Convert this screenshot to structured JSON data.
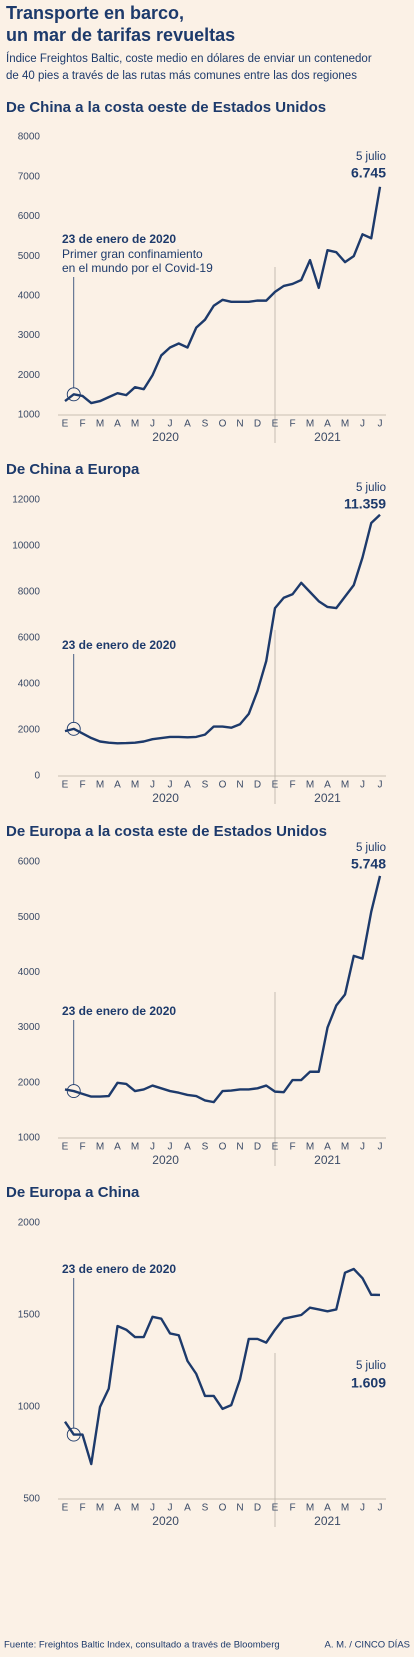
{
  "header": {
    "title": [
      "Transporte en barco,",
      "un mar de tarifas revueltas"
    ],
    "subtitle": [
      "Índice Freightos Baltic, coste medio en dólares de enviar un contenedor",
      "de 40 pies a través de las rutas más comunes entre las dos regiones"
    ]
  },
  "chart_data": [
    {
      "type": "line",
      "title": "De China a la costa oeste de Estados Unidos",
      "categories": [
        "E",
        null,
        "F",
        null,
        "M",
        null,
        "A",
        null,
        "M",
        null,
        "J",
        null,
        "J",
        null,
        "A",
        null,
        "S",
        null,
        "O",
        null,
        "N",
        null,
        "D",
        null,
        "E",
        null,
        "F",
        null,
        "M",
        null,
        "A",
        null,
        "M",
        null,
        "J",
        null,
        "J"
      ],
      "x_group_labels": [
        "2020",
        "2021"
      ],
      "values": [
        1350,
        1520,
        1480,
        1300,
        1350,
        1450,
        1550,
        1500,
        1700,
        1650,
        2000,
        2500,
        2700,
        2800,
        2700,
        3200,
        3400,
        3750,
        3900,
        3850,
        3850,
        3850,
        3880,
        3880,
        4100,
        4250,
        4300,
        4400,
        4900,
        4200,
        5150,
        5100,
        4850,
        5000,
        5550,
        5450,
        6745
      ],
      "value_labels": [
        null,
        null,
        null,
        null,
        null,
        null,
        null,
        null,
        null,
        null,
        null,
        null,
        null,
        null,
        null,
        null,
        null,
        null,
        null,
        null,
        null,
        null,
        null,
        null,
        null,
        null,
        null,
        null,
        null,
        null,
        null,
        null,
        null,
        null,
        null,
        null,
        "6.745"
      ],
      "end_annotation": "5 julio",
      "annotation": {
        "title": "23 de enero de 2020",
        "lines": [
          "Primer gran confinamiento",
          "en el mundo por el Covid-19"
        ]
      },
      "color": "#1d3a6b",
      "ylim": [
        1000,
        8000
      ],
      "yticks": [
        1000,
        2000,
        3000,
        4000,
        5000,
        6000,
        7000,
        8000
      ]
    },
    {
      "type": "line",
      "title": "De China a Europa",
      "categories": [
        "E",
        null,
        "F",
        null,
        "M",
        null,
        "A",
        null,
        "M",
        null,
        "J",
        null,
        "J",
        null,
        "A",
        null,
        "S",
        null,
        "O",
        null,
        "N",
        null,
        "D",
        null,
        "E",
        null,
        "F",
        null,
        "M",
        null,
        "A",
        null,
        "M",
        null,
        "J",
        null,
        "J"
      ],
      "x_group_labels": [
        "2020",
        "2021"
      ],
      "values": [
        1950,
        2050,
        1850,
        1650,
        1500,
        1450,
        1420,
        1430,
        1450,
        1500,
        1600,
        1650,
        1700,
        1700,
        1680,
        1700,
        1800,
        2150,
        2150,
        2100,
        2250,
        2700,
        3700,
        5000,
        7300,
        7750,
        7900,
        8400,
        8000,
        7600,
        7350,
        7300,
        7800,
        8300,
        9500,
        11000,
        11359
      ],
      "value_labels": [
        null,
        null,
        null,
        null,
        null,
        null,
        null,
        null,
        null,
        null,
        null,
        null,
        null,
        null,
        null,
        null,
        null,
        null,
        null,
        null,
        null,
        null,
        null,
        null,
        null,
        null,
        null,
        null,
        null,
        null,
        null,
        null,
        null,
        null,
        null,
        null,
        "11.359"
      ],
      "end_annotation": "5 julio",
      "annotation": {
        "title": "23 de enero de 2020"
      },
      "color": "#1d3a6b",
      "ylim": [
        0,
        12000
      ],
      "yticks": [
        0,
        2000,
        4000,
        6000,
        8000,
        10000,
        12000
      ]
    },
    {
      "type": "line",
      "title": "De Europa a la costa este de Estados Unidos",
      "categories": [
        "E",
        null,
        "F",
        null,
        "M",
        null,
        "A",
        null,
        "M",
        null,
        "J",
        null,
        "J",
        null,
        "A",
        null,
        "S",
        null,
        "O",
        null,
        "N",
        null,
        "D",
        null,
        "E",
        null,
        "F",
        null,
        "M",
        null,
        "A",
        null,
        "M",
        null,
        "J",
        null,
        "J"
      ],
      "x_group_labels": [
        "2020",
        "2021"
      ],
      "values": [
        1880,
        1850,
        1800,
        1750,
        1750,
        1760,
        2000,
        1980,
        1850,
        1880,
        1950,
        1900,
        1850,
        1820,
        1780,
        1760,
        1680,
        1650,
        1850,
        1860,
        1880,
        1880,
        1900,
        1950,
        1840,
        1830,
        2050,
        2050,
        2200,
        2200,
        3000,
        3400,
        3600,
        4300,
        4250,
        5100,
        5748
      ],
      "value_labels": [
        null,
        null,
        null,
        null,
        null,
        null,
        null,
        null,
        null,
        null,
        null,
        null,
        null,
        null,
        null,
        null,
        null,
        null,
        null,
        null,
        null,
        null,
        null,
        null,
        null,
        null,
        null,
        null,
        null,
        null,
        null,
        null,
        null,
        null,
        null,
        null,
        "5.748"
      ],
      "end_annotation": "5 julio",
      "annotation": {
        "title": "23 de enero de 2020"
      },
      "color": "#1d3a6b",
      "ylim": [
        1000,
        6000
      ],
      "yticks": [
        1000,
        2000,
        3000,
        4000,
        5000,
        6000
      ]
    },
    {
      "type": "line",
      "title": "De Europa a China",
      "categories": [
        "E",
        null,
        "F",
        null,
        "M",
        null,
        "A",
        null,
        "M",
        null,
        "J",
        null,
        "J",
        null,
        "A",
        null,
        "S",
        null,
        "O",
        null,
        "N",
        null,
        "D",
        null,
        "E",
        null,
        "F",
        null,
        "M",
        null,
        "A",
        null,
        "M",
        null,
        "J",
        null,
        "J"
      ],
      "x_group_labels": [
        "2020",
        "2021"
      ],
      "values": [
        920,
        850,
        850,
        690,
        1000,
        1100,
        1440,
        1420,
        1380,
        1380,
        1490,
        1480,
        1400,
        1390,
        1250,
        1180,
        1060,
        1060,
        990,
        1010,
        1150,
        1370,
        1370,
        1350,
        1420,
        1480,
        1490,
        1500,
        1540,
        1530,
        1520,
        1530,
        1730,
        1750,
        1700,
        1610,
        1609
      ],
      "value_labels": [
        null,
        null,
        null,
        null,
        null,
        null,
        null,
        null,
        null,
        null,
        null,
        null,
        null,
        null,
        null,
        null,
        null,
        null,
        null,
        null,
        null,
        null,
        null,
        null,
        null,
        null,
        null,
        null,
        null,
        null,
        null,
        null,
        null,
        null,
        null,
        null,
        "1.609"
      ],
      "end_annotation": "5 julio",
      "annotation": {
        "title": "23 de enero de 2020"
      },
      "color": "#1d3a6b",
      "ylim": [
        500,
        2000
      ],
      "yticks": [
        500,
        1000,
        1500,
        2000
      ]
    }
  ],
  "footer": {
    "source": "Fuente: Freightos Baltic Index, consultado a través de Bloomberg",
    "credit": "A. M. / CINCO DÍAS"
  }
}
